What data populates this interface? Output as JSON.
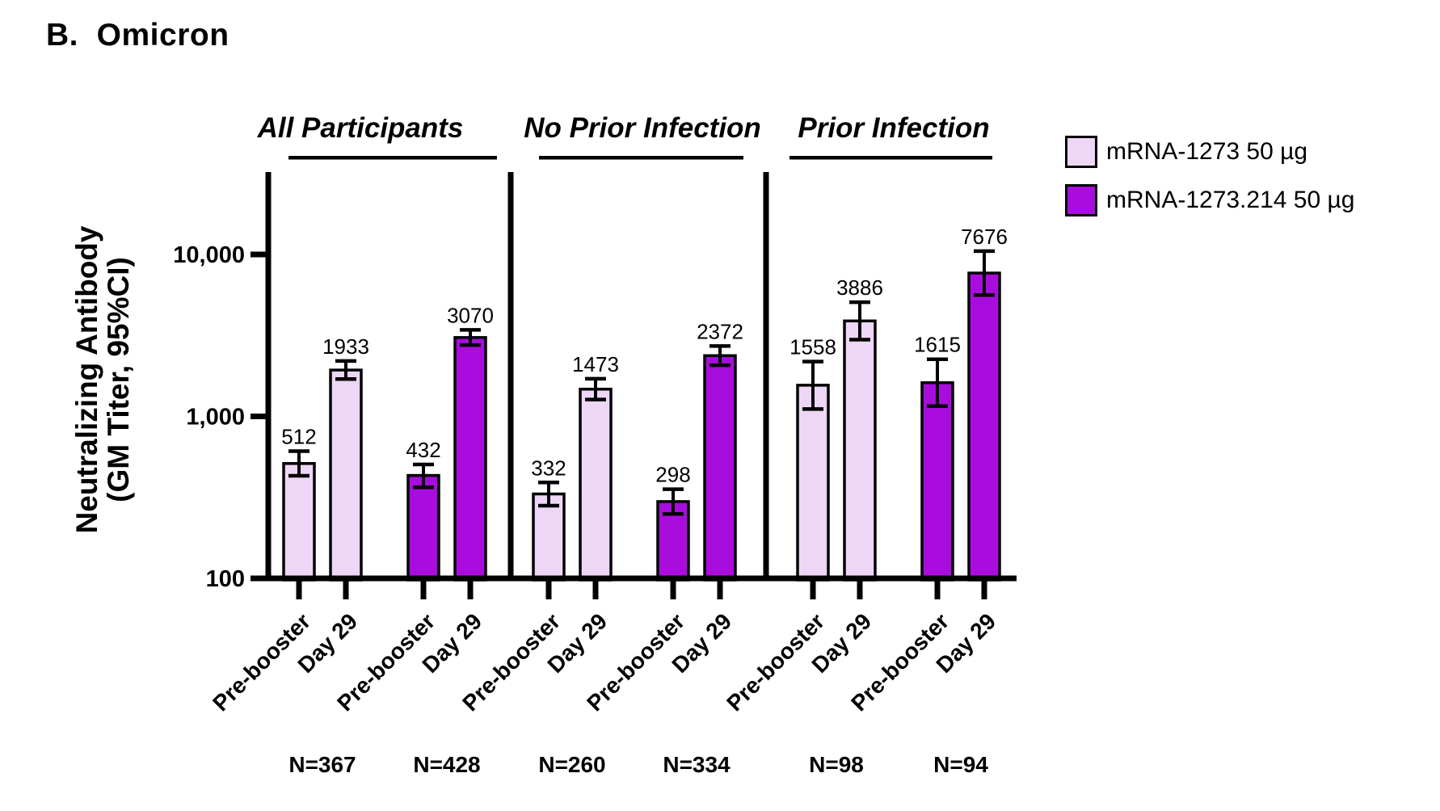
{
  "chart_data": {
    "type": "bar",
    "title": "B.  Omicron",
    "ylabel_lines": [
      "Neutralizing Antibody",
      "(GM Titer, 95%CI)"
    ],
    "yscale": "log",
    "ylim": [
      100,
      32000
    ],
    "grid": false,
    "legend_position": "top-right",
    "yticks": [
      {
        "value": 100,
        "label": "100"
      },
      {
        "value": 1000,
        "label": "1,000"
      },
      {
        "value": 10000,
        "label": "10,000"
      }
    ],
    "series_names": [
      "mRNA-1273 50 µg",
      "mRNA-1273.214 50 µg"
    ],
    "timepoints": [
      "Pre-booster",
      "Day 29"
    ],
    "colors": {
      "fills": [
        "#eed6f6",
        "#a90ddd"
      ],
      "outline": "#000000"
    },
    "groups": [
      {
        "header": "All Participants",
        "pairs": [
          {
            "series": 0,
            "n": "N=367",
            "bars": [
              {
                "timepoint": "Pre-booster",
                "gm_titer": 512,
                "ci95": [
                  430,
                  610
                ]
              },
              {
                "timepoint": "Day 29",
                "gm_titer": 1933,
                "ci95": [
                  1700,
                  2200
                ]
              }
            ]
          },
          {
            "series": 1,
            "n": "N=428",
            "bars": [
              {
                "timepoint": "Pre-booster",
                "gm_titer": 432,
                "ci95": [
                  365,
                  505
                ]
              },
              {
                "timepoint": "Day 29",
                "gm_titer": 3070,
                "ci95": [
                  2760,
                  3420
                ]
              }
            ]
          }
        ]
      },
      {
        "header": "No Prior Infection",
        "pairs": [
          {
            "series": 0,
            "n": "N=260",
            "bars": [
              {
                "timepoint": "Pre-booster",
                "gm_titer": 332,
                "ci95": [
                  281,
                  391
                ]
              },
              {
                "timepoint": "Day 29",
                "gm_titer": 1473,
                "ci95": [
                  1271,
                  1708
                ]
              }
            ]
          },
          {
            "series": 1,
            "n": "N=334",
            "bars": [
              {
                "timepoint": "Pre-booster",
                "gm_titer": 298,
                "ci95": [
                  250,
                  355
                ]
              },
              {
                "timepoint": "Day 29",
                "gm_titer": 2372,
                "ci95": [
                  2071,
                  2718
                ]
              }
            ]
          }
        ]
      },
      {
        "header": "Prior Infection",
        "pairs": [
          {
            "series": 0,
            "n": "N=98",
            "bars": [
              {
                "timepoint": "Pre-booster",
                "gm_titer": 1558,
                "ci95": [
                  1110,
                  2180
                ]
              },
              {
                "timepoint": "Day 29",
                "gm_titer": 3886,
                "ci95": [
                  2978,
                  5073
                ]
              }
            ]
          },
          {
            "series": 1,
            "n": "N=94",
            "bars": [
              {
                "timepoint": "Pre-booster",
                "gm_titer": 1615,
                "ci95": [
                  1157,
                  2255
                ]
              },
              {
                "timepoint": "Day 29",
                "gm_titer": 7676,
                "ci95": [
                  5618,
                  10488
                ]
              }
            ]
          }
        ]
      }
    ]
  }
}
